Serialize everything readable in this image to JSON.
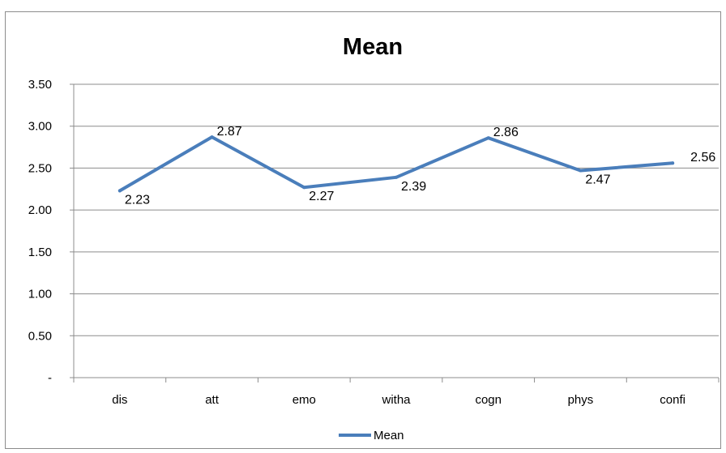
{
  "chart_data": {
    "type": "line",
    "title": "Mean",
    "categories": [
      "dis",
      "att",
      "emo",
      "witha",
      "cogn",
      "phys",
      "confi"
    ],
    "series": [
      {
        "name": "Mean",
        "values": [
          2.23,
          2.87,
          2.27,
          2.39,
          2.86,
          2.47,
          2.56
        ],
        "data_labels": [
          "2.23",
          "2.87",
          "2.27",
          "2.39",
          "2.86",
          "2.47",
          "2.56"
        ],
        "color": "#4a7ebb"
      }
    ],
    "xlabel": "",
    "ylabel": "",
    "ylim": [
      0,
      3.5
    ],
    "y_ticks": [
      0,
      0.5,
      1.0,
      1.5,
      2.0,
      2.5,
      3.0,
      3.5
    ],
    "y_tick_labels": [
      "-",
      "0.50",
      "1.00",
      "1.50",
      "2.00",
      "2.50",
      "3.00",
      "3.50"
    ],
    "grid": true,
    "legend": {
      "position": "bottom",
      "entries": [
        "Mean"
      ]
    }
  }
}
